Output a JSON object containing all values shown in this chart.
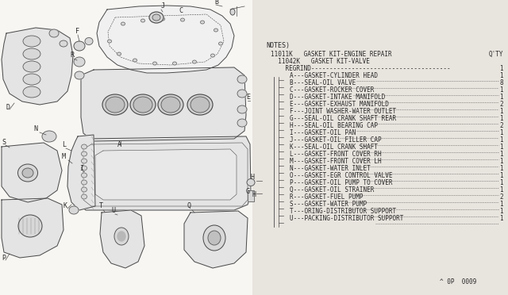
{
  "bg_color": "#e8e4de",
  "diagram_area_color": "#f5f3ef",
  "text_color": "#2a2a2a",
  "line_color": "#4a4a4a",
  "notes_header": "NOTES)",
  "kit1_line": "11011K   GASKET KIT-ENGINE REPAIR",
  "kit1_qty": "Q'TY",
  "kit2_line": "  11042K   GASKET KIT-VALVE",
  "regrind_line": "    REGRIND",
  "parts": [
    [
      "A",
      "GASKET-CYLINDER HEAD",
      "1"
    ],
    [
      "B",
      "SEAL-OIL VALVE",
      "8"
    ],
    [
      "C",
      "GASKET-ROCKER COVER",
      "1"
    ],
    [
      "D",
      "GASKET-INTAKE MANIFOLD",
      "1"
    ],
    [
      "E",
      "GASKET-EXHAUST MANIFOLD",
      "2"
    ],
    [
      "F",
      "JOINT WASHER-WATER OUTLET",
      "1"
    ],
    [
      "G",
      "SEAL-OIL CRANK SHAFT REAR",
      "1"
    ],
    [
      "H",
      "SEAL-OIL BEARING CAP",
      "2"
    ],
    [
      "I",
      "GASKET-OIL PAN",
      "1"
    ],
    [
      "J",
      "GASKET-OIL FILLER CAP",
      "1"
    ],
    [
      "K",
      "SEAL-OIL CRANK SHAFT",
      "1"
    ],
    [
      "L",
      "GASKET-FRONT COVER RH",
      "1"
    ],
    [
      "M",
      "GASKET-FRONT COVER LH",
      "1"
    ],
    [
      "N",
      "GASKET-WATER INLET",
      "1"
    ],
    [
      "O",
      "GASKET-EGR CONTROL VALVE",
      "1"
    ],
    [
      "P",
      "GASKET-OIL PUMP TO COVER",
      "1"
    ],
    [
      "Q",
      "GASKET-OIL STRAINER",
      "1"
    ],
    [
      "R",
      "GASKET-FUEL PUMP",
      "2"
    ],
    [
      "S",
      "GASKET-WATER PUMP",
      "1"
    ],
    [
      "T",
      "ORING-DISTRIBUTOR SUPPORT",
      "1"
    ],
    [
      "U",
      "PACKING-DISTRIBUTOR SUPPORT",
      "1"
    ]
  ],
  "footer": "^ 0P  0009"
}
